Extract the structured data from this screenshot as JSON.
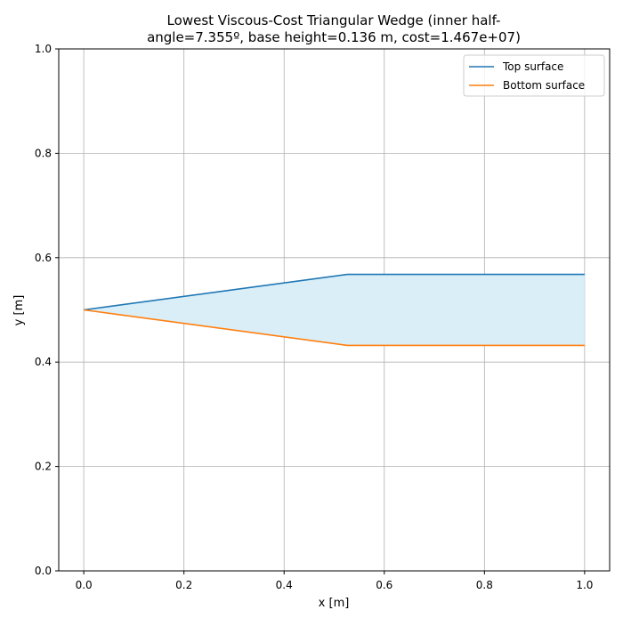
{
  "chart_data": {
    "type": "line",
    "title_lines": [
      "Lowest Viscous-Cost Triangular Wedge (inner half-",
      "angle=7.355º, base height=0.136 m, cost=1.467e+07)"
    ],
    "xlabel": "x [m]",
    "ylabel": "y [m]",
    "xlim": [
      -0.05,
      1.05
    ],
    "ylim": [
      0.0,
      1.0
    ],
    "xticks": [
      0.0,
      0.2,
      0.4,
      0.6,
      0.8,
      1.0
    ],
    "yticks": [
      0.0,
      0.2,
      0.4,
      0.6,
      0.8,
      1.0
    ],
    "xtick_labels": [
      "0.0",
      "0.2",
      "0.4",
      "0.6",
      "0.8",
      "1.0"
    ],
    "ytick_labels": [
      "0.0",
      "0.2",
      "0.4",
      "0.6",
      "0.8",
      "1.0"
    ],
    "grid": true,
    "legend_position": "top-right",
    "fill_color": "#d9eef7",
    "series": [
      {
        "name": "Top surface",
        "color": "#1f77b4",
        "x": [
          0.0,
          0.526,
          1.0
        ],
        "y": [
          0.5,
          0.568,
          0.568
        ]
      },
      {
        "name": "Bottom surface",
        "color": "#ff7f0e",
        "x": [
          0.0,
          0.526,
          1.0
        ],
        "y": [
          0.5,
          0.432,
          0.432
        ]
      }
    ]
  }
}
